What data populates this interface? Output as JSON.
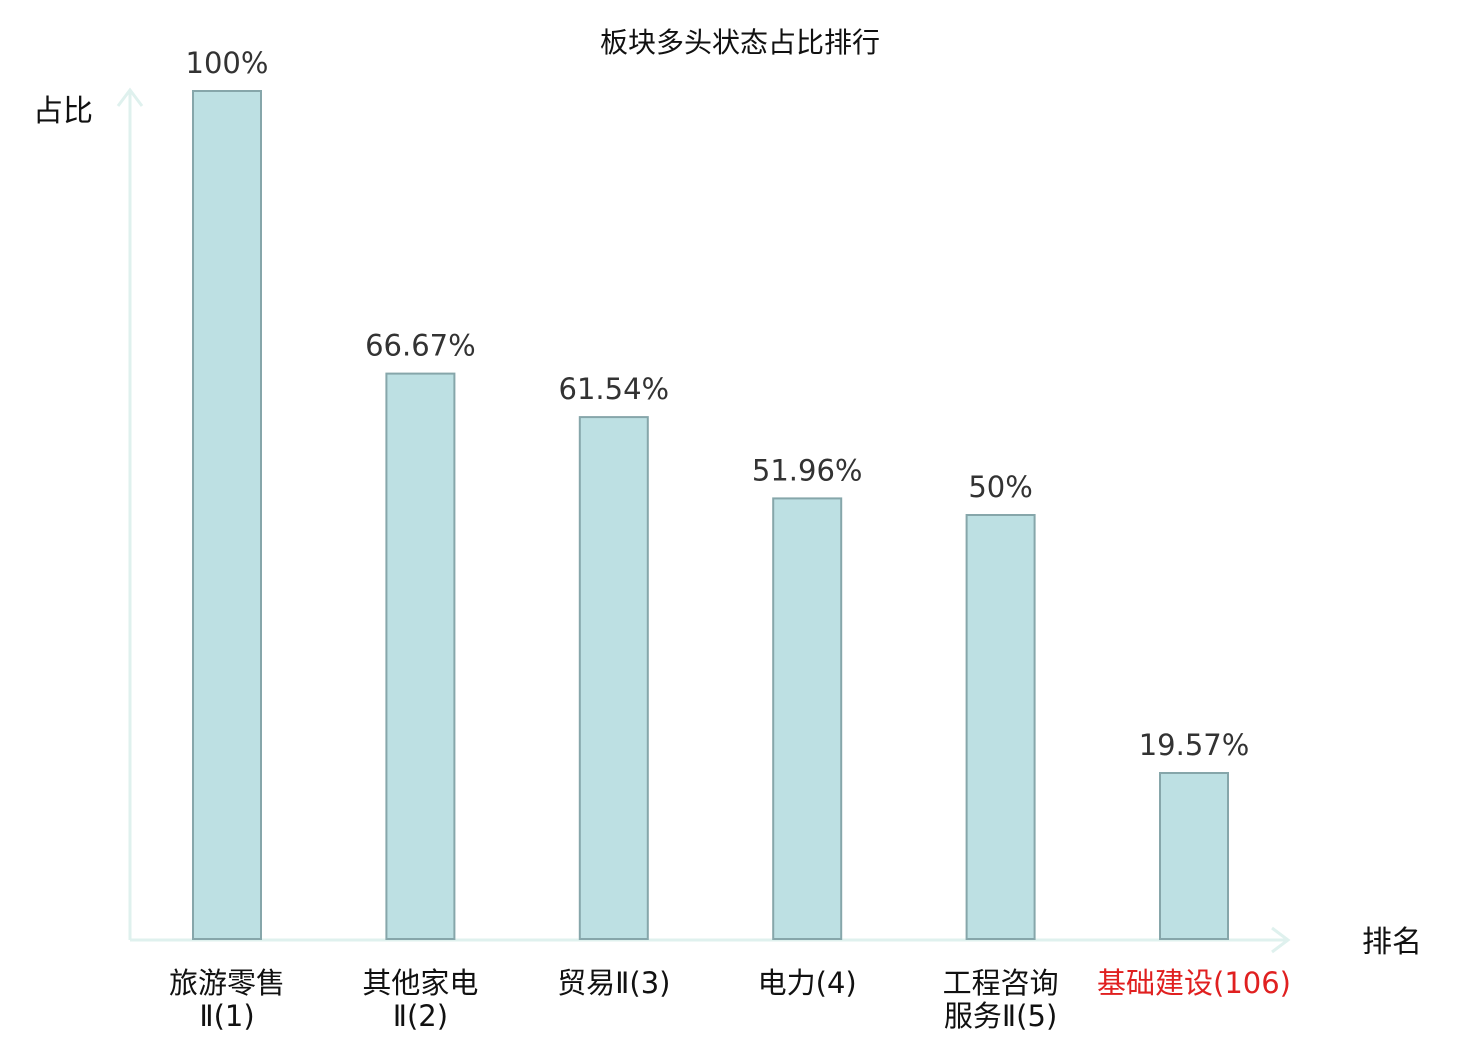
{
  "chart_data": {
    "type": "bar",
    "title": "板块多头状态占比排行",
    "xlabel": "排名",
    "ylabel": "占比",
    "ylim": [
      0,
      100
    ],
    "grid": false,
    "categories": [
      {
        "lines": [
          "旅游零售",
          "Ⅱ(1)"
        ],
        "highlight": false
      },
      {
        "lines": [
          "其他家电",
          "Ⅱ(2)"
        ],
        "highlight": false
      },
      {
        "lines": [
          "贸易Ⅱ(3)"
        ],
        "highlight": false
      },
      {
        "lines": [
          "电力(4)"
        ],
        "highlight": false
      },
      {
        "lines": [
          "工程咨询",
          "服务Ⅱ(5)"
        ],
        "highlight": false
      },
      {
        "lines": [
          "基础建设(106)"
        ],
        "highlight": true
      }
    ],
    "values": [
      100,
      66.67,
      61.54,
      51.96,
      50,
      19.57
    ],
    "value_labels": [
      "100%",
      "66.67%",
      "61.54%",
      "51.96%",
      "50%",
      "19.57%"
    ]
  },
  "colors": {
    "bar_fill": "#bde0e3",
    "bar_stroke": "#86a6aa",
    "axis": "#dff1ee",
    "highlight_text": "#e02020"
  }
}
